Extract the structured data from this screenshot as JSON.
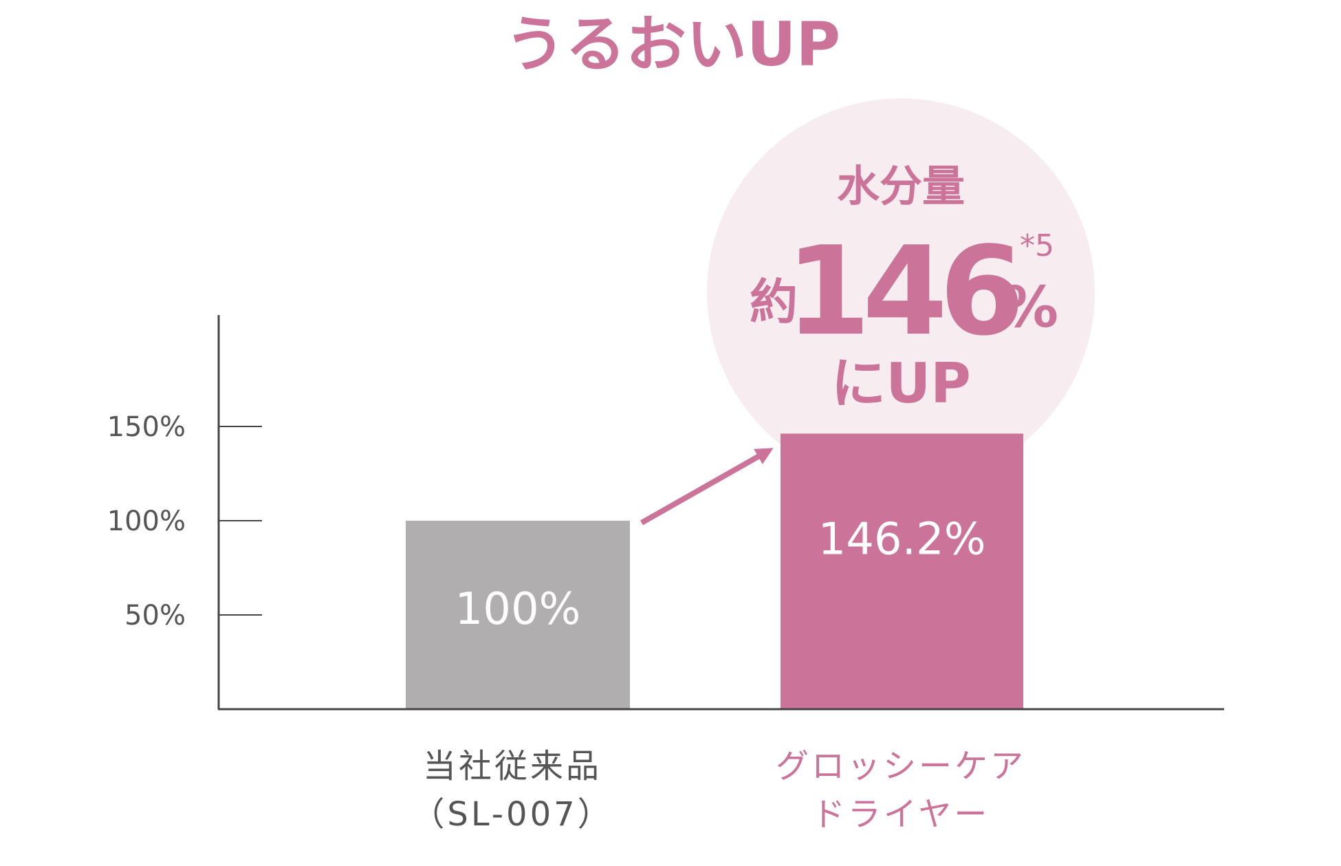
{
  "title": "うるおいUP",
  "callout": {
    "line1": "水分量",
    "prefix": "約",
    "value": "146",
    "unit": "%",
    "footnote": "*5",
    "line3": "にUP"
  },
  "colors": {
    "accent": "#CC7399",
    "baseline_bar": "#B1AEAF",
    "bubble": "#F7EDF1",
    "axis": "#444444",
    "tick_text": "#555555",
    "category_text": "#555555",
    "bar_label": "#FFFFFF"
  },
  "chart_data": {
    "type": "bar",
    "title": "うるおいUP",
    "xlabel": "",
    "ylabel": "",
    "ylim": [
      0,
      210
    ],
    "yticks": [
      50,
      100,
      150
    ],
    "ytick_labels": [
      "50%",
      "100%",
      "150%"
    ],
    "grid": false,
    "legend": "none",
    "categories": [
      {
        "lines": [
          "当社従来品",
          "（SL-007）"
        ],
        "highlight": false
      },
      {
        "lines": [
          "グロッシーケア",
          "ドライヤー"
        ],
        "highlight": true
      }
    ],
    "values": [
      100,
      146.2
    ],
    "data_labels": [
      "100%",
      "146.2%"
    ]
  }
}
